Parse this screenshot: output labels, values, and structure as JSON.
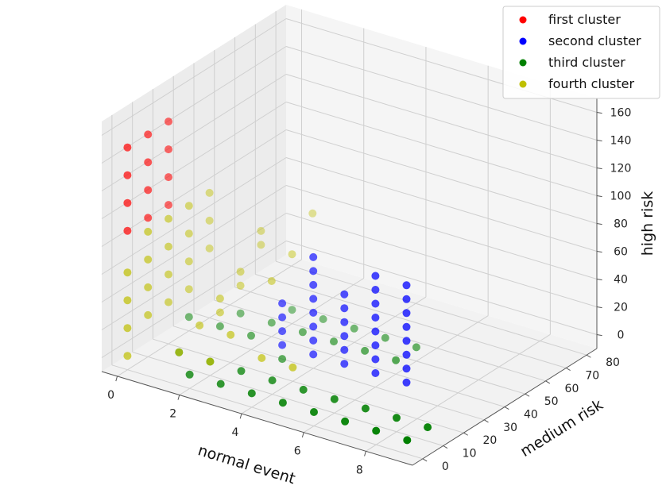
{
  "chart_data": {
    "type": "scatter",
    "projection": "3d",
    "xlabel": "normal event",
    "ylabel": "medium risk",
    "zlabel": "high risk",
    "x_ticks": [
      0,
      2,
      4,
      6,
      8
    ],
    "y_ticks": [
      0,
      10,
      20,
      30,
      40,
      50,
      60,
      70,
      80
    ],
    "z_ticks": [
      0,
      20,
      40,
      60,
      80,
      100,
      120,
      140,
      160
    ],
    "xlim": [
      -0.5,
      9.5
    ],
    "ylim": [
      -5,
      85
    ],
    "zlim": [
      -10,
      170
    ],
    "grid": true,
    "legend": "top-right",
    "series": [
      {
        "name": "first cluster",
        "color": "#ff0000",
        "points": [
          [
            0,
            0,
            150
          ],
          [
            0,
            0,
            130
          ],
          [
            0,
            0,
            110
          ],
          [
            0,
            0,
            90
          ],
          [
            0,
            10,
            150
          ],
          [
            0,
            10,
            130
          ],
          [
            0,
            10,
            110
          ],
          [
            0,
            10,
            90
          ],
          [
            0,
            20,
            150
          ],
          [
            0,
            20,
            130
          ],
          [
            0,
            20,
            110
          ],
          [
            0,
            20,
            90
          ]
        ]
      },
      {
        "name": "second cluster",
        "color": "#0000ff",
        "points": [
          [
            3,
            30,
            0
          ],
          [
            3,
            30,
            10
          ],
          [
            3,
            30,
            20
          ],
          [
            3,
            30,
            30
          ],
          [
            4,
            30,
            0
          ],
          [
            4,
            30,
            10
          ],
          [
            4,
            30,
            20
          ],
          [
            4,
            30,
            30
          ],
          [
            4,
            30,
            40
          ],
          [
            4,
            30,
            50
          ],
          [
            4,
            30,
            60
          ],
          [
            4,
            30,
            70
          ],
          [
            5,
            30,
            0
          ],
          [
            5,
            30,
            10
          ],
          [
            5,
            30,
            20
          ],
          [
            5,
            30,
            30
          ],
          [
            5,
            30,
            40
          ],
          [
            5,
            30,
            50
          ],
          [
            6,
            30,
            0
          ],
          [
            6,
            30,
            10
          ],
          [
            6,
            30,
            20
          ],
          [
            6,
            30,
            30
          ],
          [
            6,
            30,
            40
          ],
          [
            6,
            30,
            50
          ],
          [
            6,
            30,
            60
          ],
          [
            6,
            30,
            70
          ],
          [
            7,
            30,
            0
          ],
          [
            7,
            30,
            10
          ],
          [
            7,
            30,
            20
          ],
          [
            7,
            30,
            30
          ],
          [
            7,
            30,
            40
          ],
          [
            7,
            30,
            50
          ],
          [
            7,
            30,
            60
          ],
          [
            7,
            30,
            70
          ]
        ]
      },
      {
        "name": "third cluster",
        "color": "#008000",
        "points": [
          [
            0,
            30,
            0
          ],
          [
            1,
            30,
            0
          ],
          [
            2,
            30,
            0
          ],
          [
            3,
            30,
            -10
          ],
          [
            1,
            10,
            0
          ],
          [
            2,
            10,
            0
          ],
          [
            3,
            10,
            0
          ],
          [
            4,
            10,
            0
          ],
          [
            5,
            10,
            0
          ],
          [
            6,
            10,
            0
          ],
          [
            7,
            10,
            0
          ],
          [
            2,
            0,
            0
          ],
          [
            3,
            0,
            0
          ],
          [
            4,
            0,
            0
          ],
          [
            5,
            0,
            0
          ],
          [
            6,
            0,
            0
          ],
          [
            7,
            0,
            0
          ],
          [
            8,
            0,
            0
          ],
          [
            8,
            10,
            0
          ],
          [
            9,
            10,
            0
          ],
          [
            9,
            0,
            0
          ],
          [
            1,
            40,
            0
          ],
          [
            2,
            40,
            0
          ],
          [
            3,
            40,
            0
          ],
          [
            4,
            40,
            0
          ],
          [
            5,
            40,
            0
          ],
          [
            6,
            40,
            0
          ],
          [
            2,
            50,
            0
          ],
          [
            3,
            50,
            0
          ],
          [
            4,
            50,
            0
          ],
          [
            5,
            50,
            0
          ],
          [
            6,
            50,
            0
          ]
        ]
      },
      {
        "name": "fourth cluster",
        "color": "#bfbf00",
        "points": [
          [
            0,
            0,
            0
          ],
          [
            0,
            0,
            20
          ],
          [
            0,
            0,
            40
          ],
          [
            0,
            0,
            60
          ],
          [
            0,
            10,
            20
          ],
          [
            0,
            10,
            40
          ],
          [
            0,
            10,
            60
          ],
          [
            0,
            10,
            80
          ],
          [
            0,
            20,
            20
          ],
          [
            0,
            20,
            40
          ],
          [
            0,
            20,
            60
          ],
          [
            0,
            20,
            80
          ],
          [
            0,
            30,
            20
          ],
          [
            0,
            30,
            40
          ],
          [
            0,
            30,
            60
          ],
          [
            0,
            30,
            80
          ],
          [
            0,
            40,
            40
          ],
          [
            0,
            40,
            60
          ],
          [
            0,
            40,
            80
          ],
          [
            1,
            10,
            0
          ],
          [
            1,
            20,
            10
          ],
          [
            1,
            30,
            10
          ],
          [
            1,
            30,
            20
          ],
          [
            1,
            40,
            20
          ],
          [
            1,
            40,
            30
          ],
          [
            1,
            50,
            40
          ],
          [
            1,
            50,
            50
          ],
          [
            2,
            10,
            0
          ],
          [
            2,
            20,
            10
          ],
          [
            2,
            40,
            30
          ],
          [
            2,
            50,
            40
          ],
          [
            2,
            60,
            60
          ],
          [
            3,
            20,
            0
          ],
          [
            4,
            20,
            0
          ]
        ]
      }
    ]
  }
}
